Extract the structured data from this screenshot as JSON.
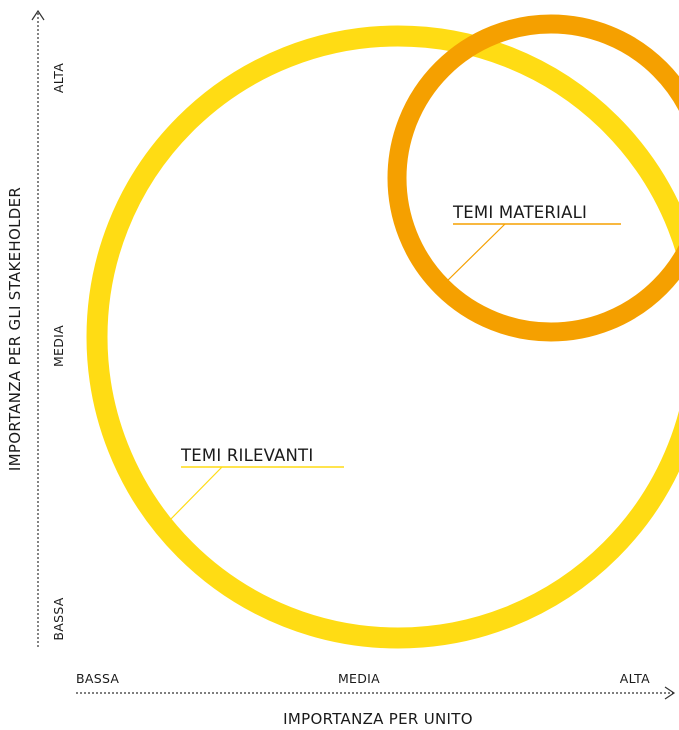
{
  "colors": {
    "relevant_ring": "#FFDC14",
    "material_ring": "#F5A000",
    "overlap": "#F8AE21",
    "axis": "#333333",
    "text": "#1a1a1a"
  },
  "x_axis": {
    "title": "IMPORTANZA PER UNITO",
    "ticks": [
      "BASSA",
      "MEDIA",
      "ALTA"
    ]
  },
  "y_axis": {
    "title": "IMPORTANZA PER GLI STAKEHOLDER",
    "ticks": [
      "BASSA",
      "MEDIA",
      "ALTA"
    ]
  },
  "rings": [
    {
      "label": "TEMI RILEVANTI",
      "color": "#FFDC14"
    },
    {
      "label": "TEMI MATERIALI",
      "color": "#F5A000"
    }
  ]
}
